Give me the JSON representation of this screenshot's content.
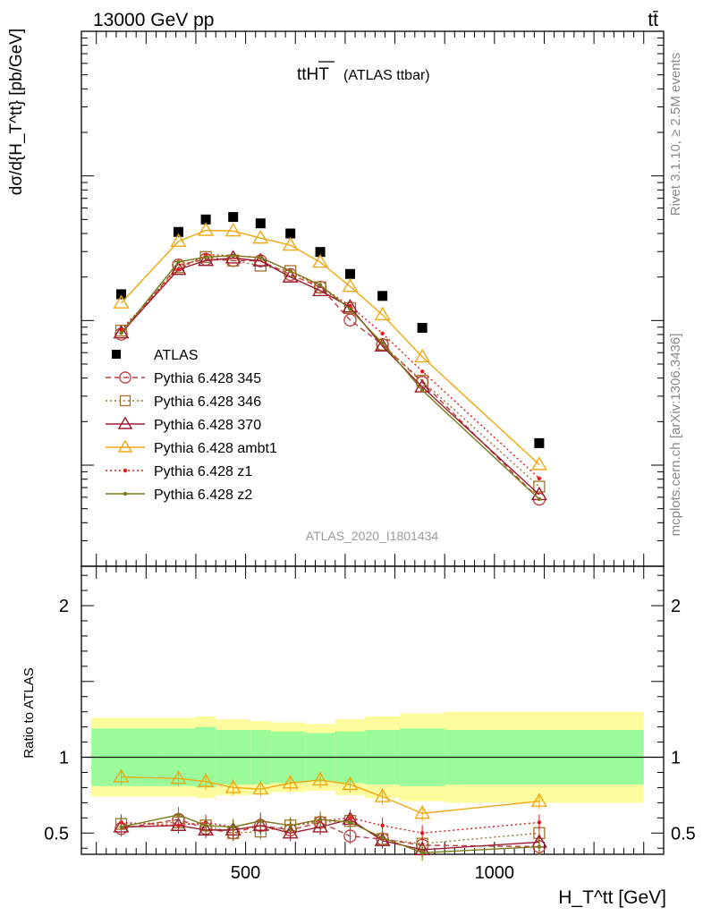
{
  "header": {
    "left": "13000 GeV pp",
    "right": "tt̄"
  },
  "chart_data": {
    "type": "scatter",
    "title_main": "ttHT",
    "title_sub": "(ATLAS ttbar)",
    "analysis_label": "ATLAS_2020_I1801434",
    "side_label_top": "Rivet 3.1.10, ≥ 2.5M events",
    "side_label_bottom": "mcplots.cern.ch [arXiv:1306.3436]",
    "ylabel": "dσ/d{H_T^tt} [pb/GeV]",
    "xlabel": "H_T^tt [GeV]",
    "ratio_ylabel": "Ratio to ATLAS",
    "xlim": [
      170,
      1340
    ],
    "ylim": [
      2e-05,
      0.1
    ],
    "ylog": true,
    "ratio_ylim": [
      0.36,
      2.26
    ],
    "x_ticks": [
      500,
      1000
    ],
    "y_ticks": [
      "10^{-4}",
      "10^{-3}",
      "10^{-2}",
      "10^{-1}"
    ],
    "ratio_ticks": [
      "0.5",
      "1",
      "2"
    ],
    "x": [
      250,
      365,
      420,
      475,
      530,
      590,
      650,
      710,
      775,
      855,
      1090
    ],
    "bin_edges": [
      190,
      330,
      400,
      440,
      510,
      550,
      620,
      680,
      740,
      810,
      900,
      1300
    ],
    "data": {
      "name": "ATLAS",
      "values": [
        0.00152,
        0.0041,
        0.005,
        0.0052,
        0.0047,
        0.004,
        0.00298,
        0.0021,
        0.00148,
        0.00089,
        0.000142
      ],
      "band_inner": [
        0.19,
        0.19,
        0.2,
        0.18,
        0.18,
        0.17,
        0.16,
        0.17,
        0.18,
        0.19,
        0.18
      ],
      "band_outer": [
        0.26,
        0.26,
        0.27,
        0.25,
        0.24,
        0.23,
        0.22,
        0.25,
        0.27,
        0.29,
        0.3
      ]
    },
    "series": [
      {
        "name": "Pythia 6.428 345",
        "color": "#c0393b",
        "dash": "6,4",
        "marker": "circle-open",
        "ratio": [
          0.53,
          0.59,
          0.53,
          0.5,
          0.55,
          0.52,
          0.57,
          0.48,
          0.46,
          0.42,
          0.41
        ]
      },
      {
        "name": "Pythia 6.428 346",
        "color": "#a0722a",
        "dash": "2,3",
        "marker": "square-open",
        "ratio": [
          0.56,
          0.57,
          0.55,
          0.5,
          0.51,
          0.55,
          0.57,
          0.58,
          0.46,
          0.43,
          0.5
        ]
      },
      {
        "name": "Pythia 6.428 370",
        "color": "#9b1b30",
        "dash": "",
        "marker": "triangle-open",
        "ratio": [
          0.54,
          0.55,
          0.52,
          0.52,
          0.55,
          0.5,
          0.54,
          0.59,
          0.45,
          0.39,
          0.44
        ]
      },
      {
        "name": "Pythia 6.428 ambt1",
        "color": "#f0a810",
        "dash": "",
        "marker": "triangle-open",
        "ratio": [
          0.87,
          0.86,
          0.84,
          0.8,
          0.79,
          0.83,
          0.85,
          0.82,
          0.74,
          0.63,
          0.71
        ]
      },
      {
        "name": "Pythia 6.428 z1",
        "color": "#e01a1a",
        "dash": "2,3",
        "marker": "dot",
        "ratio": [
          0.57,
          0.55,
          0.57,
          0.54,
          0.58,
          0.55,
          0.58,
          0.6,
          0.55,
          0.5,
          0.57
        ]
      },
      {
        "name": "Pythia 6.428 z2",
        "color": "#7a7a18",
        "dash": "",
        "marker": "dot",
        "ratio": [
          0.54,
          0.62,
          0.55,
          0.54,
          0.58,
          0.55,
          0.59,
          0.57,
          0.47,
          0.37,
          0.41
        ]
      }
    ]
  }
}
